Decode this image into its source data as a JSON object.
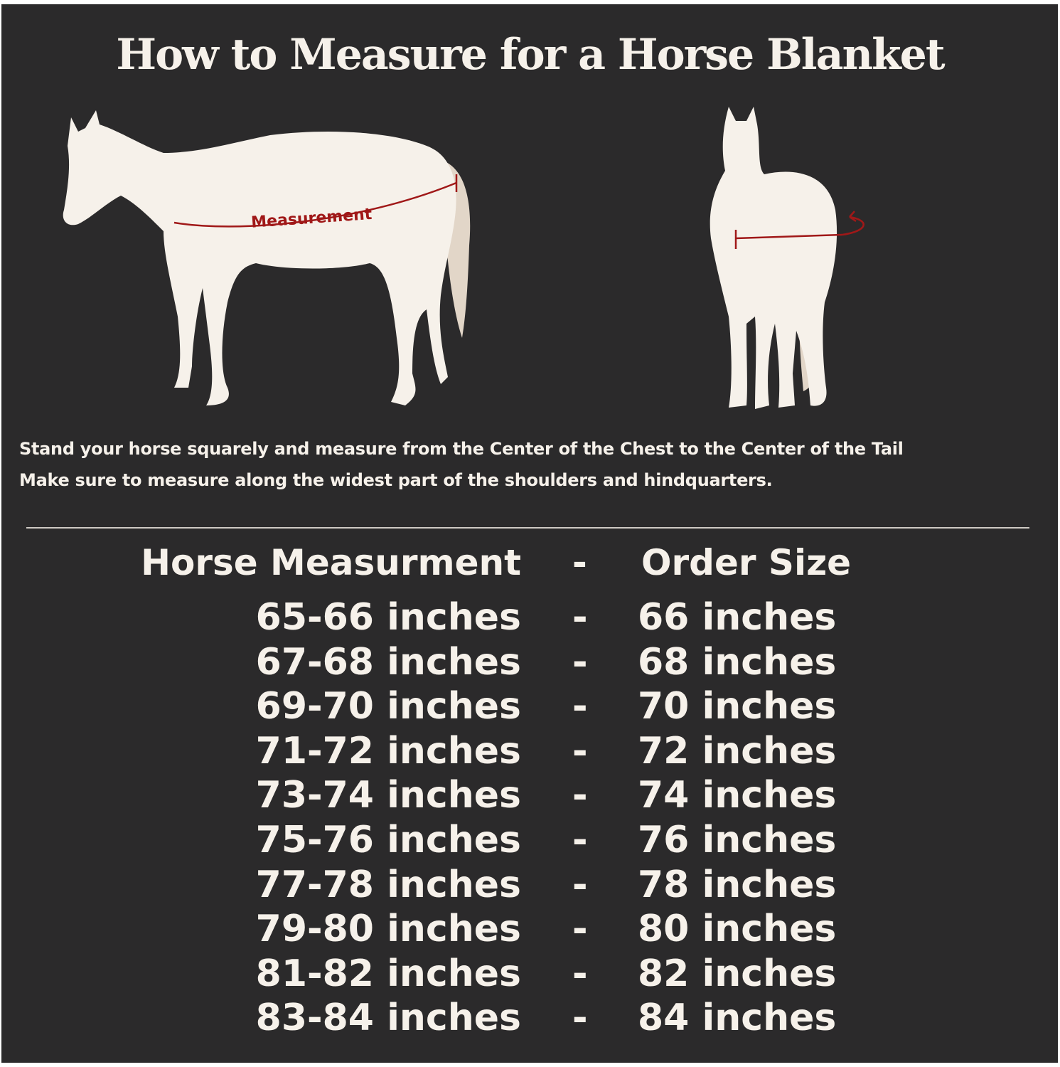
{
  "title": "How to Measure for a Horse Blanket",
  "diagram": {
    "measurement_label": "Measurement",
    "accent_color": "#a01818",
    "horse_color": "#f6f1ea",
    "tail_color": "#e2d6c8"
  },
  "instructions": [
    "Stand your horse squarely and measure from the Center of the Chest to the Center of the Tail",
    "Make sure to measure along the widest part of the shoulders and hindquarters."
  ],
  "table": {
    "header": {
      "left": "Horse Measurment",
      "sep": "-",
      "right": "Order Size"
    },
    "rows": [
      {
        "measurement": "65-66 inches",
        "sep": "-",
        "size": "66 inches"
      },
      {
        "measurement": "67-68 inches",
        "sep": "-",
        "size": "68 inches"
      },
      {
        "measurement": "69-70 inches",
        "sep": "-",
        "size": "70 inches"
      },
      {
        "measurement": "71-72 inches",
        "sep": "-",
        "size": "72 inches"
      },
      {
        "measurement": "73-74 inches",
        "sep": "-",
        "size": "74 inches"
      },
      {
        "measurement": "75-76 inches",
        "sep": "-",
        "size": "76 inches"
      },
      {
        "measurement": "77-78 inches",
        "sep": "-",
        "size": "78 inches"
      },
      {
        "measurement": "79-80 inches",
        "sep": "-",
        "size": "80 inches"
      },
      {
        "measurement": "81-82 inches",
        "sep": "-",
        "size": "82 inches"
      },
      {
        "measurement": "83-84 inches",
        "sep": "-",
        "size": "84 inches"
      }
    ]
  }
}
